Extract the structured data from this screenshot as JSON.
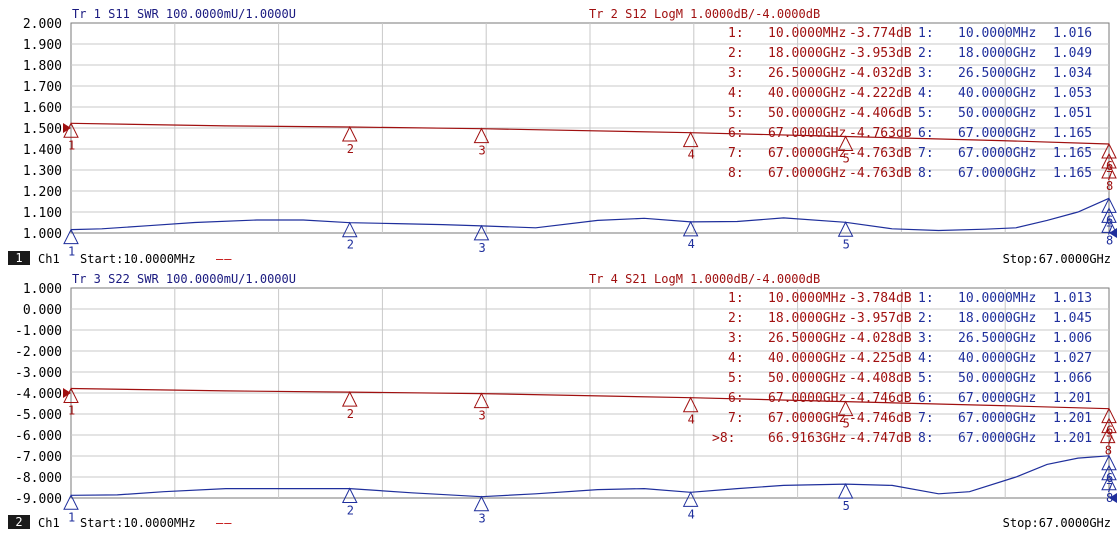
{
  "channels": [
    {
      "number": "1",
      "name": "Ch1",
      "start": "Start:10.0000MHz",
      "stop": "Stop:67.0000GHz",
      "legend": "——"
    },
    {
      "number": "2",
      "name": "Ch1",
      "start": "Start:10.0000MHz",
      "stop": "Stop:67.0000GHz",
      "legend": "——"
    }
  ],
  "colors": {
    "left_trace": "#1f2f9c",
    "right_trace": "#a01010",
    "grid": "#c8c8c8",
    "frame": "#7a7a7a"
  },
  "chart_data": [
    {
      "type": "line",
      "title_left": "Tr 1  S11 SWR 100.0000mU/1.0000U",
      "title_right": "Tr 2  S12 LogM 1.0000dB/-4.0000dB",
      "x_range": [
        "10.0000MHz",
        "67.0000GHz"
      ],
      "xlim": [
        0.01,
        67
      ],
      "y_ticks": [
        "2.000",
        "1.900",
        "1.800",
        "1.700",
        "1.600",
        "1.500",
        "1.400",
        "1.300",
        "1.200",
        "1.100",
        "1.000"
      ],
      "ylim": [
        1.0,
        2.0
      ],
      "grid": true,
      "left_series": {
        "name": "S11 SWR",
        "x": [
          0.01,
          2,
          5,
          8,
          12,
          15,
          18,
          21,
          24,
          26.5,
          30,
          34,
          37,
          40,
          43,
          46,
          50,
          53,
          56,
          59,
          61,
          63,
          65,
          67
        ],
        "y": [
          1.016,
          1.02,
          1.035,
          1.05,
          1.062,
          1.062,
          1.049,
          1.045,
          1.04,
          1.034,
          1.025,
          1.06,
          1.07,
          1.053,
          1.055,
          1.072,
          1.051,
          1.02,
          1.012,
          1.018,
          1.025,
          1.06,
          1.1,
          1.165
        ]
      },
      "right_series": {
        "name": "S12 LogM",
        "x": [
          0.01,
          10,
          18,
          26.5,
          40,
          50,
          60,
          67
        ],
        "y": [
          -3.774,
          -3.9,
          -3.953,
          -4.032,
          -4.222,
          -4.406,
          -4.6,
          -4.763
        ]
      },
      "right_scale": {
        "ref_value": -4.0,
        "per_div": 1.0,
        "ref_row": 5
      },
      "right_markers": [
        {
          "label": "1",
          "x": 0.01,
          "marker_text": "1:",
          "freq": "10.0000MHz",
          "value": "-3.774dB"
        },
        {
          "label": "2",
          "x": 18,
          "marker_text": "2:",
          "freq": "18.0000GHz",
          "value": "-3.953dB"
        },
        {
          "label": "3",
          "x": 26.5,
          "marker_text": "3:",
          "freq": "26.5000GHz",
          "value": "-4.032dB"
        },
        {
          "label": "4",
          "x": 40,
          "marker_text": "4:",
          "freq": "40.0000GHz",
          "value": "-4.222dB"
        },
        {
          "label": "5",
          "x": 50,
          "marker_text": "5:",
          "freq": "50.0000GHz",
          "value": "-4.406dB"
        },
        {
          "label": "6",
          "x": 67,
          "marker_text": "6:",
          "freq": "67.0000GHz",
          "value": "-4.763dB"
        },
        {
          "label": "7",
          "x": 67,
          "marker_text": "7:",
          "freq": "67.0000GHz",
          "value": "-4.763dB"
        },
        {
          "label": "8",
          "x": 67,
          "marker_text": "8:",
          "freq": "67.0000GHz",
          "value": "-4.763dB"
        }
      ],
      "left_markers": [
        {
          "label": "1",
          "x": 0.01,
          "marker_text": "1:",
          "freq": "10.0000MHz",
          "value": "1.016"
        },
        {
          "label": "2",
          "x": 18,
          "marker_text": "2:",
          "freq": "18.0000GHz",
          "value": "1.049"
        },
        {
          "label": "3",
          "x": 26.5,
          "marker_text": "3:",
          "freq": "26.5000GHz",
          "value": "1.034"
        },
        {
          "label": "4",
          "x": 40,
          "marker_text": "4:",
          "freq": "40.0000GHz",
          "value": "1.053"
        },
        {
          "label": "5",
          "x": 50,
          "marker_text": "5:",
          "freq": "50.0000GHz",
          "value": "1.051"
        },
        {
          "label": "6",
          "x": 67,
          "marker_text": "6:",
          "freq": "67.0000GHz",
          "value": "1.165"
        },
        {
          "label": "7",
          "x": 67,
          "marker_text": "7:",
          "freq": "67.0000GHz",
          "value": "1.165"
        },
        {
          "label": "8",
          "x": 67,
          "marker_text": "8:",
          "freq": "67.0000GHz",
          "value": "1.165"
        }
      ]
    },
    {
      "type": "line",
      "title_left": "Tr 3  S22 SWR 100.0000mU/1.0000U",
      "title_right": "Tr 4  S21 LogM 1.0000dB/-4.0000dB",
      "x_range": [
        "10.0000MHz",
        "67.0000GHz"
      ],
      "xlim": [
        0.01,
        67
      ],
      "y_ticks": [
        "1.000",
        "0.000",
        "-1.000",
        "-2.000",
        "-3.000",
        "-4.000",
        "-5.000",
        "-6.000",
        "-7.000",
        "-8.000",
        "-9.000"
      ],
      "ylim": [
        -9.0,
        1.0
      ],
      "grid": true,
      "left_series": {
        "name": "S22 SWR",
        "x": [
          0.01,
          3,
          6,
          10,
          14,
          18,
          22,
          26.5,
          30,
          34,
          37,
          40,
          43,
          46,
          50,
          53,
          56,
          58,
          61,
          63,
          65,
          67
        ],
        "y": [
          1.013,
          1.015,
          1.03,
          1.045,
          1.045,
          1.045,
          1.025,
          1.006,
          1.02,
          1.04,
          1.045,
          1.027,
          1.045,
          1.06,
          1.066,
          1.06,
          1.02,
          1.03,
          1.1,
          1.16,
          1.19,
          1.201
        ]
      },
      "left_scale": {
        "ref_value": 1.0,
        "per_div": 0.1,
        "ref_row": 10
      },
      "right_series": {
        "name": "S21 LogM",
        "x": [
          0.01,
          10,
          18,
          26.5,
          40,
          50,
          60,
          67
        ],
        "y": [
          -3.784,
          -3.9,
          -3.957,
          -4.028,
          -4.225,
          -4.408,
          -4.6,
          -4.746
        ]
      },
      "right_markers": [
        {
          "label": "1",
          "x": 0.01,
          "marker_text": "1:",
          "freq": "10.0000MHz",
          "value": "-3.784dB"
        },
        {
          "label": "2",
          "x": 18,
          "marker_text": "2:",
          "freq": "18.0000GHz",
          "value": "-3.957dB"
        },
        {
          "label": "3",
          "x": 26.5,
          "marker_text": "3:",
          "freq": "26.5000GHz",
          "value": "-4.028dB"
        },
        {
          "label": "4",
          "x": 40,
          "marker_text": "4:",
          "freq": "40.0000GHz",
          "value": "-4.225dB"
        },
        {
          "label": "5",
          "x": 50,
          "marker_text": "5:",
          "freq": "50.0000GHz",
          "value": "-4.408dB"
        },
        {
          "label": "6",
          "x": 67,
          "marker_text": "6:",
          "freq": "67.0000GHz",
          "value": "-4.746dB"
        },
        {
          "label": "7",
          "x": 67,
          "marker_text": "7:",
          "freq": "67.0000GHz",
          "value": "-4.746dB"
        },
        {
          "label": "8",
          "x": 66.9163,
          "marker_text": ">8:",
          "freq": "66.9163GHz",
          "value": "-4.747dB"
        }
      ],
      "left_markers": [
        {
          "label": "1",
          "x": 0.01,
          "marker_text": "1:",
          "freq": "10.0000MHz",
          "value": "1.013"
        },
        {
          "label": "2",
          "x": 18,
          "marker_text": "2:",
          "freq": "18.0000GHz",
          "value": "1.045"
        },
        {
          "label": "3",
          "x": 26.5,
          "marker_text": "3:",
          "freq": "26.5000GHz",
          "value": "1.006"
        },
        {
          "label": "4",
          "x": 40,
          "marker_text": "4:",
          "freq": "40.0000GHz",
          "value": "1.027"
        },
        {
          "label": "5",
          "x": 50,
          "marker_text": "5:",
          "freq": "50.0000GHz",
          "value": "1.066"
        },
        {
          "label": "6",
          "x": 67,
          "marker_text": "6:",
          "freq": "67.0000GHz",
          "value": "1.201"
        },
        {
          "label": "7",
          "x": 67,
          "marker_text": "7:",
          "freq": "67.0000GHz",
          "value": "1.201"
        },
        {
          "label": "8",
          "x": 67,
          "marker_text": "8:",
          "freq": "67.0000GHz",
          "value": "1.201"
        }
      ]
    }
  ]
}
